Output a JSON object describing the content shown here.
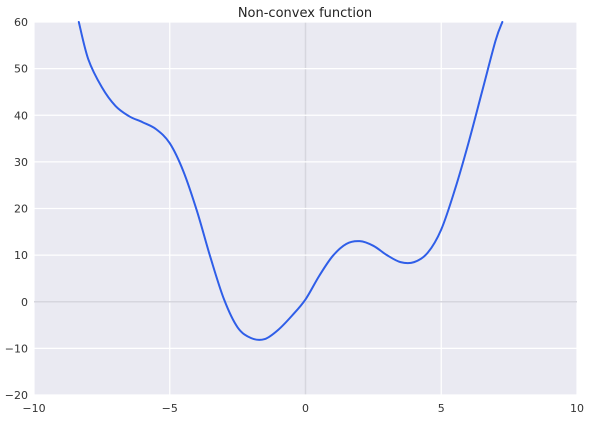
{
  "chart_data": {
    "type": "line",
    "title": "Non-convex function",
    "xlabel": "",
    "ylabel": "",
    "xlim": [
      -10,
      10
    ],
    "ylim": [
      -20,
      60
    ],
    "x_ticks": [
      -10,
      -5,
      0,
      5,
      10
    ],
    "y_ticks": [
      -20,
      -10,
      0,
      10,
      20,
      30,
      40,
      50,
      60
    ],
    "x_tick_labels": [
      "−10",
      "−5",
      "0",
      "5",
      "10"
    ],
    "y_tick_labels": [
      "−20",
      "−10",
      "0",
      "10",
      "20",
      "30",
      "40",
      "50",
      "60"
    ],
    "grid": true,
    "background_color": "#eaeaf2",
    "grid_color": "#ffffff",
    "zero_line_color": "#d6d6de",
    "series": [
      {
        "color": "#2f5ee8",
        "x": [
          -8.35,
          -8.0,
          -7.5,
          -7.0,
          -6.5,
          -6.0,
          -5.5,
          -5.0,
          -4.5,
          -4.0,
          -3.5,
          -3.0,
          -2.5,
          -2.0,
          -1.5,
          -1.0,
          -0.5,
          0.0,
          0.5,
          1.0,
          1.5,
          2.0,
          2.5,
          3.0,
          3.5,
          4.0,
          4.5,
          5.0,
          5.5,
          6.0,
          6.5,
          7.0,
          7.25
        ],
        "y": [
          60,
          52,
          46,
          42,
          39.8,
          38.5,
          37,
          34,
          28,
          19.5,
          9.5,
          0.5,
          -5.5,
          -7.8,
          -8,
          -6,
          -3,
          0.5,
          5.5,
          9.8,
          12.4,
          13,
          12,
          10,
          8.5,
          8.5,
          10.5,
          15.5,
          24,
          34,
          45,
          56,
          60
        ]
      }
    ]
  }
}
